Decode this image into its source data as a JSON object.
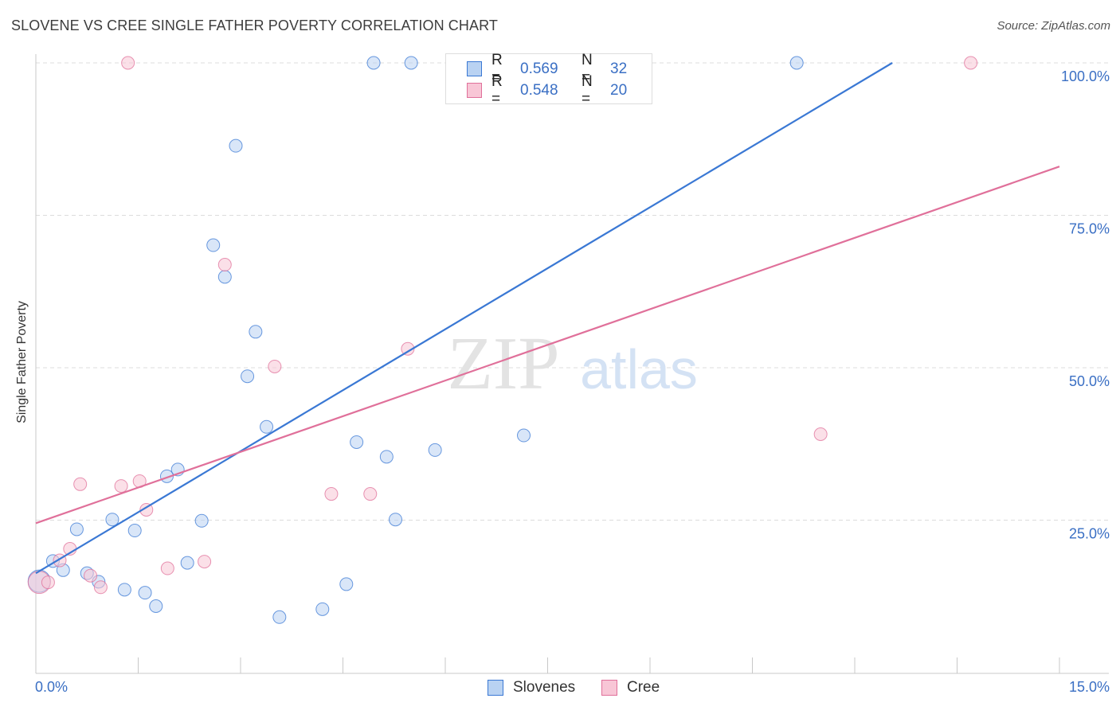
{
  "header": {
    "title": "SLOVENE VS CREE SINGLE FATHER POVERTY CORRELATION CHART",
    "source": "Source: ZipAtlas.com"
  },
  "watermark": {
    "zip": "ZIP",
    "atlas": "atlas"
  },
  "stats": {
    "rows": [
      {
        "r_label": "R =",
        "r_value": "0.569",
        "n_label": "N =",
        "n_value": "32"
      },
      {
        "r_label": "R =",
        "r_value": "0.548",
        "n_label": "N =",
        "n_value": "20"
      }
    ]
  },
  "legend": {
    "slovenes": "Slovenes",
    "cree": "Cree"
  },
  "chart_data": {
    "type": "scatter",
    "title": "SLOVENE VS CREE SINGLE FATHER POVERTY CORRELATION CHART",
    "xlabel": "",
    "ylabel": "Single Father Poverty",
    "xlim": [
      0,
      15
    ],
    "ylim": [
      0,
      100
    ],
    "x_tick_labels": [
      "0.0%",
      "15.0%"
    ],
    "y_tick_labels": [
      "25.0%",
      "50.0%",
      "75.0%",
      "100.0%"
    ],
    "y_ticks": [
      25,
      50,
      75,
      100
    ],
    "x_minor_ticks": [
      1.5,
      3,
      4.5,
      6,
      7.5,
      9,
      10.5,
      12,
      13.5
    ],
    "series": [
      {
        "name": "Slovenes",
        "color": "#3a78d4",
        "fill": "#b9d2f2",
        "trend": {
          "x": [
            0,
            12.55
          ],
          "y": [
            16.3,
            100
          ]
        },
        "points": [
          {
            "x": 0.05,
            "y": 15.0,
            "big": true
          },
          {
            "x": 0.25,
            "y": 18.3
          },
          {
            "x": 0.4,
            "y": 16.8
          },
          {
            "x": 0.6,
            "y": 23.5
          },
          {
            "x": 0.75,
            "y": 16.3
          },
          {
            "x": 0.92,
            "y": 14.9
          },
          {
            "x": 1.12,
            "y": 25.1
          },
          {
            "x": 1.3,
            "y": 13.6
          },
          {
            "x": 1.45,
            "y": 23.3
          },
          {
            "x": 1.6,
            "y": 13.1
          },
          {
            "x": 1.76,
            "y": 10.9
          },
          {
            "x": 1.92,
            "y": 32.2
          },
          {
            "x": 2.08,
            "y": 33.3
          },
          {
            "x": 2.22,
            "y": 18.0
          },
          {
            "x": 2.43,
            "y": 24.9
          },
          {
            "x": 2.6,
            "y": 70.1
          },
          {
            "x": 2.77,
            "y": 64.9
          },
          {
            "x": 2.93,
            "y": 86.4
          },
          {
            "x": 3.1,
            "y": 48.6
          },
          {
            "x": 3.22,
            "y": 55.9
          },
          {
            "x": 3.38,
            "y": 40.3
          },
          {
            "x": 3.57,
            "y": 9.1
          },
          {
            "x": 4.2,
            "y": 10.4
          },
          {
            "x": 4.55,
            "y": 14.5
          },
          {
            "x": 4.7,
            "y": 37.8
          },
          {
            "x": 4.95,
            "y": 100
          },
          {
            "x": 5.14,
            "y": 35.4
          },
          {
            "x": 5.27,
            "y": 25.1
          },
          {
            "x": 5.5,
            "y": 100
          },
          {
            "x": 5.85,
            "y": 36.5
          },
          {
            "x": 7.15,
            "y": 38.9
          },
          {
            "x": 11.15,
            "y": 100
          }
        ]
      },
      {
        "name": "Cree",
        "color": "#e0709a",
        "fill": "#f8c6d6",
        "trend": {
          "x": [
            0,
            15
          ],
          "y": [
            24.5,
            83.0
          ]
        },
        "points": [
          {
            "x": 0.05,
            "y": 14.8,
            "big": true
          },
          {
            "x": 0.18,
            "y": 14.8
          },
          {
            "x": 0.35,
            "y": 18.4
          },
          {
            "x": 0.5,
            "y": 20.3
          },
          {
            "x": 0.65,
            "y": 30.9
          },
          {
            "x": 0.8,
            "y": 15.9
          },
          {
            "x": 0.95,
            "y": 14.0
          },
          {
            "x": 1.25,
            "y": 30.6
          },
          {
            "x": 1.35,
            "y": 100
          },
          {
            "x": 1.52,
            "y": 31.4
          },
          {
            "x": 1.62,
            "y": 26.7
          },
          {
            "x": 1.93,
            "y": 17.1
          },
          {
            "x": 2.47,
            "y": 18.2
          },
          {
            "x": 2.77,
            "y": 66.9
          },
          {
            "x": 3.5,
            "y": 50.2
          },
          {
            "x": 4.33,
            "y": 29.3
          },
          {
            "x": 4.9,
            "y": 29.3
          },
          {
            "x": 5.45,
            "y": 53.1
          },
          {
            "x": 11.5,
            "y": 39.1
          },
          {
            "x": 13.7,
            "y": 100
          }
        ]
      }
    ]
  }
}
